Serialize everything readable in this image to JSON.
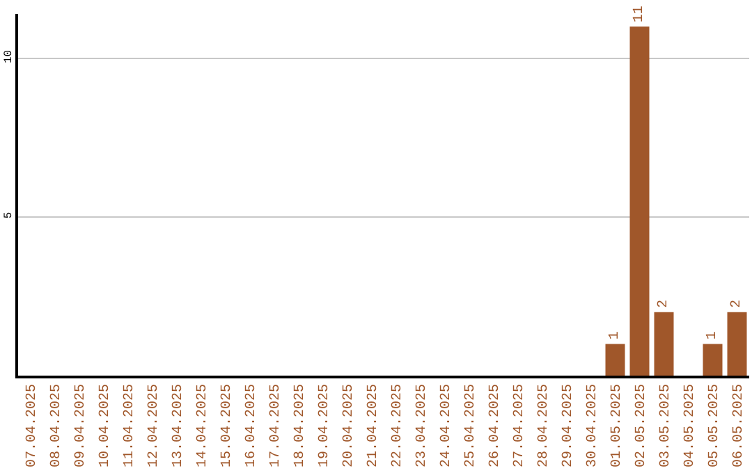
{
  "chart_data": {
    "type": "bar",
    "categories": [
      "07.04.2025",
      "08.04.2025",
      "09.04.2025",
      "10.04.2025",
      "11.04.2025",
      "12.04.2025",
      "13.04.2025",
      "14.04.2025",
      "15.04.2025",
      "16.04.2025",
      "17.04.2025",
      "18.04.2025",
      "19.04.2025",
      "20.04.2025",
      "21.04.2025",
      "22.04.2025",
      "23.04.2025",
      "24.04.2025",
      "25.04.2025",
      "26.04.2025",
      "27.04.2025",
      "28.04.2025",
      "29.04.2025",
      "30.04.2025",
      "01.05.2025",
      "02.05.2025",
      "03.05.2025",
      "04.05.2025",
      "05.05.2025",
      "06.05.2025"
    ],
    "values": [
      0,
      0,
      0,
      0,
      0,
      0,
      0,
      0,
      0,
      0,
      0,
      0,
      0,
      0,
      0,
      0,
      0,
      0,
      0,
      0,
      0,
      0,
      0,
      0,
      1,
      11,
      2,
      0,
      1,
      2
    ],
    "value_labels": [
      null,
      null,
      null,
      null,
      null,
      null,
      null,
      null,
      null,
      null,
      null,
      null,
      null,
      null,
      null,
      null,
      null,
      null,
      null,
      null,
      null,
      null,
      null,
      null,
      "1",
      "11",
      "2",
      null,
      "1",
      "2"
    ],
    "color": "#a0572a",
    "ylim": [
      0,
      11.4
    ],
    "yticks": [
      5,
      10
    ],
    "grid": "y",
    "legend": false
  }
}
